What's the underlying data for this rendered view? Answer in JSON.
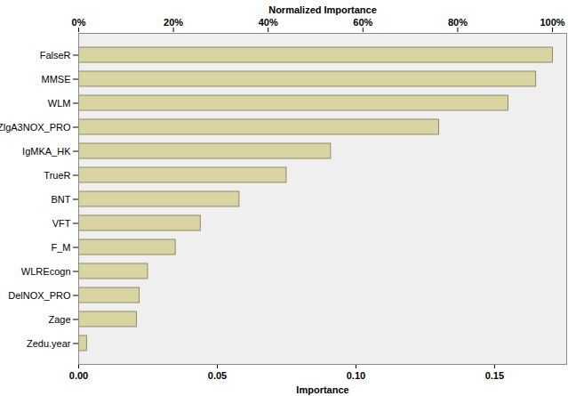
{
  "chart_data": {
    "type": "bar",
    "orientation": "horizontal",
    "xlabel": "Importance",
    "x2label": "Normalized Importance",
    "categories": [
      "FalseR",
      "MMSE",
      "WLM",
      "ZlgA3NOX_PRO",
      "IgMKA_HK",
      "TrueR",
      "BNT",
      "VFT",
      "F_M",
      "WLREcogn",
      "DelNOX_PRO",
      "Zage",
      "Zedu.year"
    ],
    "values": [
      0.171,
      0.165,
      0.155,
      0.13,
      0.091,
      0.075,
      0.058,
      0.044,
      0.035,
      0.025,
      0.022,
      0.021,
      0.003
    ],
    "color": "#d9d4a1",
    "xlim": [
      0,
      0.176
    ],
    "xticks": [
      {
        "value": 0,
        "label": "0.00"
      },
      {
        "value": 0.05,
        "label": "0.05"
      },
      {
        "value": 0.1,
        "label": "0.10"
      },
      {
        "value": 0.15,
        "label": "0.15"
      }
    ],
    "x2lim": [
      0,
      103
    ],
    "x2ticks": [
      {
        "value": 0,
        "label": "0%"
      },
      {
        "value": 20,
        "label": "20%"
      },
      {
        "value": 40,
        "label": "40%"
      },
      {
        "value": 60,
        "label": "60%"
      },
      {
        "value": 80,
        "label": "80%"
      },
      {
        "value": 100,
        "label": "100%"
      }
    ]
  }
}
